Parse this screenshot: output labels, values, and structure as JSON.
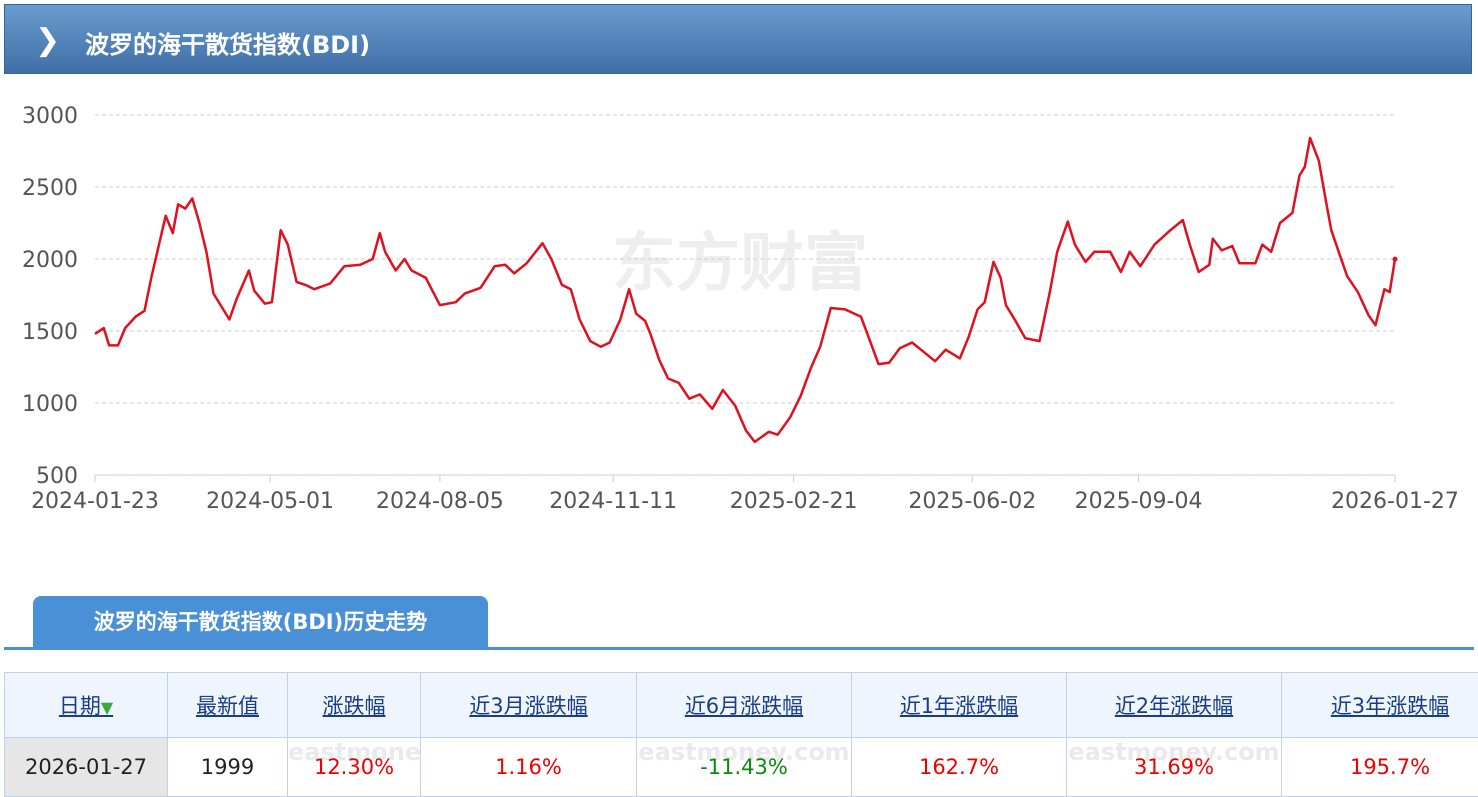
{
  "header": {
    "title": "波罗的海干散货指数(BDI)"
  },
  "chart_data": {
    "type": "line",
    "watermark": "东方财富",
    "color": "#e0101e",
    "grid": true,
    "xlim": [
      "2024-01-23",
      "2026-01-27"
    ],
    "xticks": [
      "2024-01-23",
      "2024-05-01",
      "2024-08-05",
      "2024-11-11",
      "2025-02-21",
      "2025-06-02",
      "2025-09-04",
      "2026-01-27"
    ],
    "ylim": [
      500,
      3000
    ],
    "yticks": [
      500,
      1000,
      1500,
      2000,
      2500,
      3000
    ],
    "x": [
      "2024-01-23",
      "2024-01-28",
      "2024-01-31",
      "2024-02-05",
      "2024-02-09",
      "2024-02-15",
      "2024-02-20",
      "2024-02-24",
      "2024-03-03",
      "2024-03-07",
      "2024-03-10",
      "2024-03-14",
      "2024-03-18",
      "2024-03-22",
      "2024-03-26",
      "2024-03-30",
      "2024-04-03",
      "2024-04-08",
      "2024-04-12",
      "2024-04-19",
      "2024-04-22",
      "2024-04-28",
      "2024-05-02",
      "2024-05-07",
      "2024-05-11",
      "2024-05-16",
      "2024-05-21",
      "2024-05-26",
      "2024-06-04",
      "2024-06-12",
      "2024-06-21",
      "2024-06-28",
      "2024-07-02",
      "2024-07-05",
      "2024-07-11",
      "2024-07-16",
      "2024-07-20",
      "2024-07-28",
      "2024-08-05",
      "2024-08-14",
      "2024-08-19",
      "2024-08-28",
      "2024-09-05",
      "2024-09-11",
      "2024-09-16",
      "2024-09-23",
      "2024-10-02",
      "2024-10-07",
      "2024-10-13",
      "2024-10-18",
      "2024-10-23",
      "2024-10-29",
      "2024-11-04",
      "2024-11-09",
      "2024-11-15",
      "2024-11-20",
      "2024-11-24",
      "2024-11-29",
      "2024-12-02",
      "2024-12-07",
      "2024-12-12",
      "2024-12-18",
      "2024-12-24",
      "2024-12-30",
      "2025-01-06",
      "2025-01-12",
      "2025-01-19",
      "2025-01-25",
      "2025-01-30",
      "2025-02-07",
      "2025-02-12",
      "2025-02-19",
      "2025-02-25",
      "2025-03-03",
      "2025-03-08",
      "2025-03-14",
      "2025-03-22",
      "2025-03-31",
      "2025-04-04",
      "2025-04-10",
      "2025-04-16",
      "2025-04-22",
      "2025-04-29",
      "2025-05-05",
      "2025-05-12",
      "2025-05-18",
      "2025-05-26",
      "2025-05-31",
      "2025-06-05",
      "2025-06-09",
      "2025-06-14",
      "2025-06-18",
      "2025-06-21",
      "2025-06-26",
      "2025-07-02",
      "2025-07-10",
      "2025-07-16",
      "2025-07-20",
      "2025-07-26",
      "2025-07-30",
      "2025-08-05",
      "2025-08-10",
      "2025-08-19",
      "2025-08-25",
      "2025-08-30",
      "2025-09-05",
      "2025-09-13",
      "2025-09-22",
      "2025-09-29",
      "2025-10-03",
      "2025-10-08",
      "2025-10-14",
      "2025-10-16",
      "2025-10-21",
      "2025-10-27",
      "2025-10-31",
      "2025-11-09",
      "2025-11-13",
      "2025-11-18",
      "2025-11-23",
      "2025-11-30",
      "2025-12-04",
      "2025-12-07",
      "2025-12-10",
      "2025-12-15",
      "2025-12-19",
      "2025-12-22",
      "2025-12-27",
      "2025-12-31",
      "2026-01-06",
      "2026-01-12",
      "2026-01-16",
      "2026-01-21",
      "2026-01-24",
      "2026-01-27"
    ],
    "values": [
      1480,
      1520,
      1400,
      1400,
      1520,
      1600,
      1640,
      1880,
      2300,
      2180,
      2380,
      2350,
      2420,
      2250,
      2050,
      1760,
      1680,
      1580,
      1720,
      1920,
      1780,
      1690,
      1700,
      2200,
      2100,
      1840,
      1820,
      1790,
      1830,
      1950,
      1960,
      2000,
      2180,
      2050,
      1920,
      2000,
      1920,
      1870,
      1680,
      1700,
      1760,
      1800,
      1950,
      1960,
      1900,
      1970,
      2110,
      2000,
      1820,
      1790,
      1580,
      1430,
      1390,
      1420,
      1580,
      1790,
      1620,
      1570,
      1480,
      1300,
      1170,
      1140,
      1030,
      1060,
      960,
      1090,
      980,
      810,
      730,
      800,
      780,
      900,
      1050,
      1250,
      1390,
      1660,
      1650,
      1600,
      1470,
      1270,
      1280,
      1380,
      1420,
      1360,
      1290,
      1370,
      1310,
      1460,
      1650,
      1700,
      1980,
      1870,
      1680,
      1580,
      1450,
      1430,
      1780,
      2050,
      2260,
      2100,
      1980,
      2050,
      2050,
      1910,
      2050,
      1950,
      2100,
      2200,
      2270,
      2100,
      1910,
      1960,
      2140,
      2060,
      2090,
      1970,
      1970,
      2100,
      2050,
      2250,
      2320,
      2580,
      2640,
      2840,
      2680,
      2400,
      2200,
      2020,
      1880,
      1770,
      1610,
      1540,
      1790,
      1770,
      1999
    ]
  },
  "table": {
    "tab": "波罗的海干散货指数(BDI)历史走势",
    "watermark": "eastmoney.com",
    "header": [
      "日期",
      "最新值",
      "涨跌幅",
      "近3月涨跌幅",
      "近6月涨跌幅",
      "近1年涨跌幅",
      "近2年涨跌幅",
      "近3年涨跌幅"
    ],
    "rows": [
      [
        "2026-01-27",
        "1999",
        "12.30%",
        "1.16%",
        "-11.43%",
        "162.7%",
        "31.69%",
        "195.7%"
      ]
    ],
    "cell_colors": [
      "#222",
      "#222",
      "#e00",
      "#e00",
      "#0a8a0a",
      "#e00",
      "#e00",
      "#e00"
    ]
  }
}
